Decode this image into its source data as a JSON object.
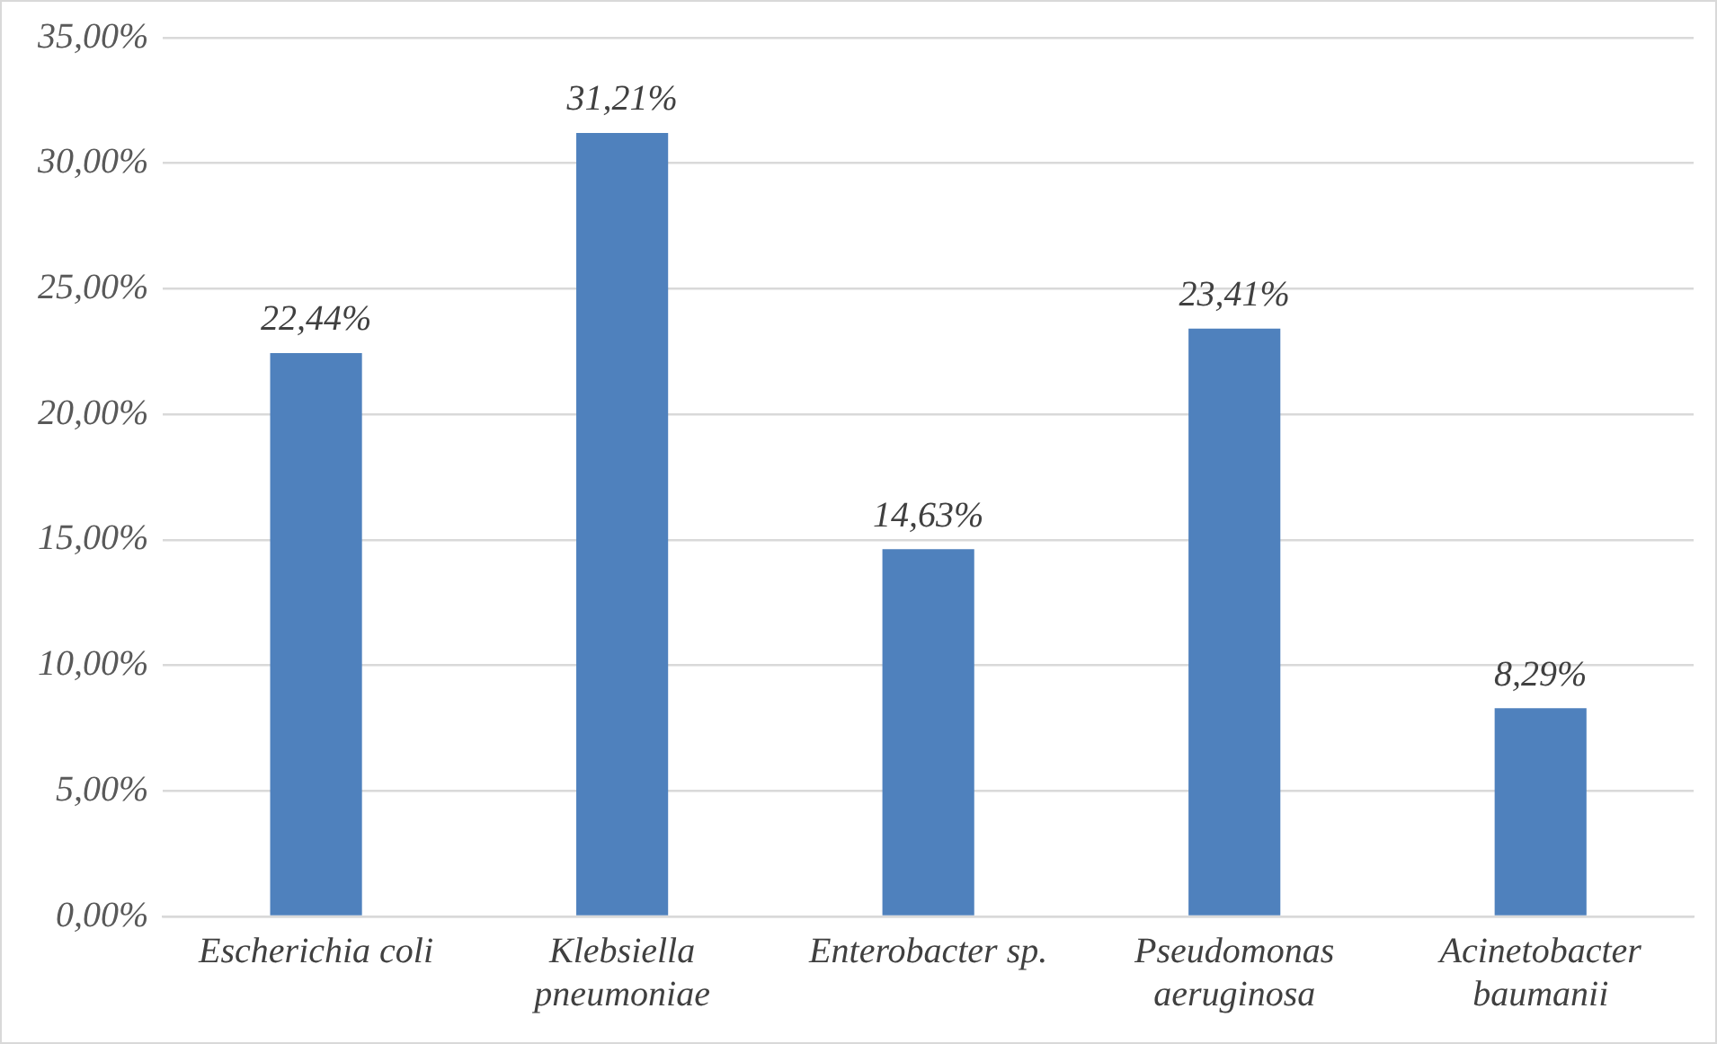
{
  "chart_data": {
    "type": "bar",
    "categories": [
      "Escherichia coli",
      "Klebsiella pneumoniae",
      "Enterobacter sp.",
      "Pseudomonas aeruginosa",
      "Acinetobacter baumanii"
    ],
    "values": [
      22.44,
      31.21,
      14.63,
      23.41,
      8.29
    ],
    "value_labels": [
      "22,44%",
      "31,21%",
      "14,63%",
      "23,41%",
      "8,29%"
    ],
    "color": "#4f81bd",
    "ylim": [
      0,
      35
    ],
    "yticks": [
      {
        "value": 0,
        "label": "0,00%"
      },
      {
        "value": 5,
        "label": "5,00%"
      },
      {
        "value": 10,
        "label": "10,00%"
      },
      {
        "value": 15,
        "label": "15,00%"
      },
      {
        "value": 20,
        "label": "20,00%"
      },
      {
        "value": 25,
        "label": "25,00%"
      },
      {
        "value": 30,
        "label": "30,00%"
      },
      {
        "value": 35,
        "label": "35,00%"
      }
    ],
    "grid": "y"
  }
}
